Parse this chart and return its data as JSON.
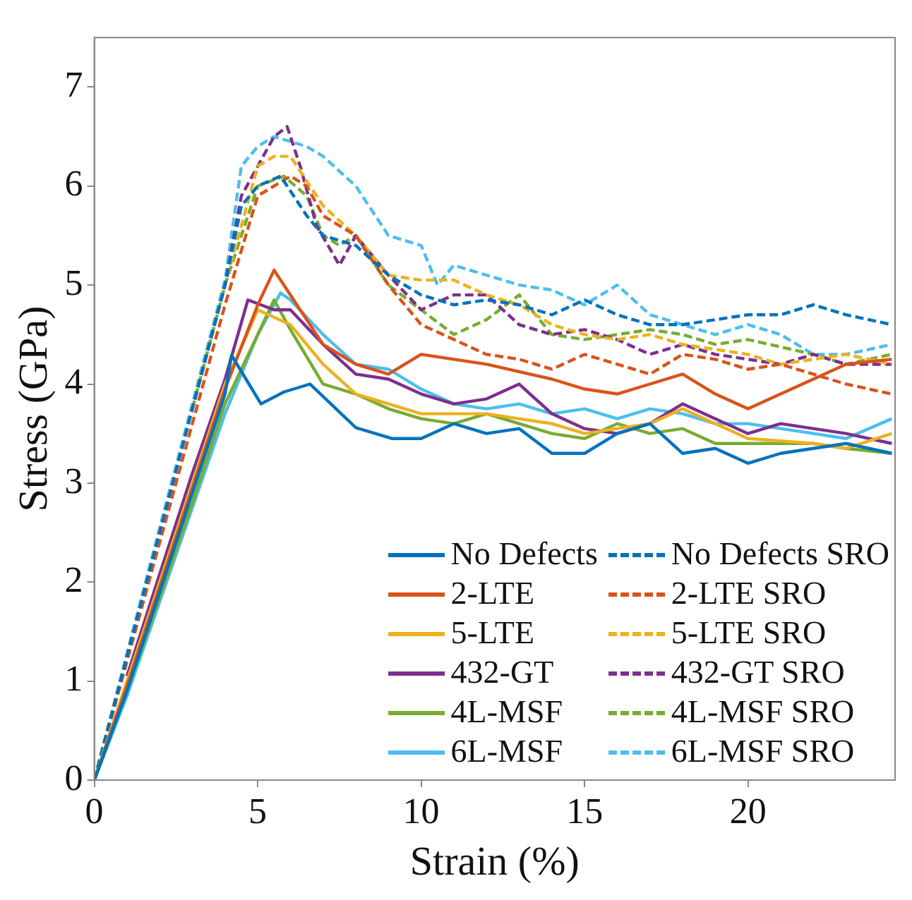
{
  "chart_data": {
    "type": "line",
    "xlabel": "Strain (%)",
    "ylabel": "Stress (GPa)",
    "xlim": [
      0,
      24.5
    ],
    "ylim": [
      0,
      7.5
    ],
    "xticks": [
      0,
      5,
      10,
      15,
      20
    ],
    "yticks": [
      0,
      1,
      2,
      3,
      4,
      5,
      6,
      7
    ],
    "grid": false,
    "legend": "bottom right",
    "marker": "none",
    "series": [
      {
        "name": "No Defects",
        "color": "#0072bd",
        "line_style": "solid",
        "x": [
          0,
          1,
          2,
          3,
          4,
          4.2,
          5.1,
          5.8,
          6.6,
          7.3,
          8,
          9.1,
          10,
          11,
          12,
          13,
          14,
          15,
          16,
          17,
          18,
          19,
          20,
          21,
          22,
          23,
          24.4
        ],
        "values": [
          0,
          0.9,
          1.9,
          2.9,
          3.9,
          4.29,
          3.8,
          3.92,
          4.0,
          3.78,
          3.56,
          3.45,
          3.45,
          3.6,
          3.5,
          3.55,
          3.3,
          3.3,
          3.5,
          3.6,
          3.3,
          3.35,
          3.2,
          3.3,
          3.35,
          3.4,
          3.3
        ]
      },
      {
        "name": "2-LTE",
        "color": "#d95319",
        "line_style": "solid",
        "x": [
          0,
          1,
          2,
          3,
          4,
          5,
          5.5,
          6,
          7,
          8,
          9,
          10,
          12,
          14,
          15,
          16,
          17,
          18,
          19,
          20,
          21,
          22,
          23,
          24.4
        ],
        "values": [
          0,
          0.95,
          1.95,
          2.95,
          3.95,
          4.8,
          5.15,
          4.9,
          4.4,
          4.2,
          4.1,
          4.3,
          4.2,
          4.05,
          3.95,
          3.9,
          4.0,
          4.1,
          3.9,
          3.75,
          3.9,
          4.05,
          4.2,
          4.25
        ]
      },
      {
        "name": "5-LTE",
        "color": "#edb120",
        "line_style": "solid",
        "x": [
          0,
          1,
          2,
          3,
          4,
          5,
          6,
          7,
          8,
          9,
          10,
          12,
          14,
          15,
          17,
          18,
          19,
          20,
          22,
          23,
          24.4
        ],
        "values": [
          0,
          1.0,
          2.0,
          3.0,
          4.0,
          4.75,
          4.6,
          4.2,
          3.9,
          3.8,
          3.7,
          3.7,
          3.6,
          3.5,
          3.6,
          3.75,
          3.6,
          3.45,
          3.4,
          3.35,
          3.5
        ]
      },
      {
        "name": "432-GT",
        "color": "#7e2f8e",
        "line_style": "solid",
        "x": [
          1,
          2,
          3,
          4,
          4.7,
          5.5,
          6,
          7,
          8,
          9,
          10,
          11,
          12,
          13,
          14,
          15,
          16,
          17,
          18,
          19,
          20,
          21,
          22,
          23,
          24.4
        ],
        "values": [
          1.05,
          2.08,
          3.1,
          4.05,
          4.85,
          4.75,
          4.75,
          4.4,
          4.1,
          4.05,
          3.9,
          3.8,
          3.85,
          4.0,
          3.7,
          3.55,
          3.5,
          3.6,
          3.8,
          3.65,
          3.5,
          3.6,
          3.55,
          3.5,
          3.4
        ]
      },
      {
        "name": "4L-MSF",
        "color": "#77ac30",
        "line_style": "solid",
        "x": [
          0,
          1,
          2,
          3,
          4,
          5.5,
          6,
          7,
          8,
          9,
          10,
          11,
          12,
          13,
          14,
          15,
          16,
          17,
          18,
          19,
          20,
          22,
          23,
          24.4
        ],
        "values": [
          0,
          0.9,
          1.85,
          2.8,
          3.8,
          4.85,
          4.55,
          4.0,
          3.9,
          3.75,
          3.65,
          3.6,
          3.7,
          3.6,
          3.5,
          3.45,
          3.6,
          3.5,
          3.55,
          3.4,
          3.4,
          3.4,
          3.35,
          3.3
        ]
      },
      {
        "name": "6L-MSF",
        "color": "#4dbeee",
        "line_style": "solid",
        "x": [
          0,
          1,
          2,
          3,
          4,
          5,
          5.7,
          6,
          7,
          8,
          9,
          10,
          11,
          12,
          13,
          14,
          15,
          16,
          17,
          18,
          19,
          20,
          21,
          22,
          23,
          24.4
        ],
        "values": [
          0,
          0.85,
          1.8,
          2.75,
          3.7,
          4.5,
          4.92,
          4.85,
          4.5,
          4.2,
          4.15,
          3.95,
          3.8,
          3.75,
          3.8,
          3.7,
          3.75,
          3.65,
          3.75,
          3.7,
          3.6,
          3.6,
          3.55,
          3.5,
          3.45,
          3.65
        ]
      },
      {
        "name": "No Defects SRO",
        "color": "#0072bd",
        "line_style": "dashed",
        "x": [
          0,
          1,
          2,
          3,
          4,
          4.5,
          5,
          5.7,
          6.5,
          7,
          8,
          9,
          10,
          11,
          12,
          13,
          14,
          15,
          16,
          17,
          18,
          19,
          20,
          21,
          22,
          23,
          24.4
        ],
        "values": [
          0,
          1.25,
          2.5,
          3.75,
          5.0,
          5.8,
          6.0,
          6.1,
          5.7,
          5.5,
          5.4,
          5.1,
          4.9,
          4.8,
          4.85,
          4.8,
          4.7,
          4.85,
          4.7,
          4.6,
          4.6,
          4.65,
          4.7,
          4.7,
          4.8,
          4.7,
          4.6
        ]
      },
      {
        "name": "2-LTE SRO",
        "color": "#d95319",
        "line_style": "dashed",
        "x": [
          0,
          1,
          2,
          3,
          4,
          5,
          6,
          6.5,
          7,
          8,
          9,
          10,
          11,
          12,
          13,
          14,
          15,
          16,
          17,
          18,
          19,
          20,
          21,
          22,
          23,
          24.4
        ],
        "values": [
          0,
          1.2,
          2.4,
          3.6,
          4.8,
          5.9,
          6.1,
          6.0,
          5.7,
          5.5,
          5.0,
          4.6,
          4.45,
          4.3,
          4.25,
          4.15,
          4.3,
          4.2,
          4.1,
          4.3,
          4.25,
          4.15,
          4.2,
          4.1,
          4.0,
          3.9
        ]
      },
      {
        "name": "5-LTE SRO",
        "color": "#edb120",
        "line_style": "dashed",
        "x": [
          0,
          1,
          2,
          3,
          4,
          5,
          5.5,
          6,
          7,
          8,
          9,
          10,
          11,
          12,
          13,
          14,
          15,
          16,
          17,
          18,
          19,
          20,
          21,
          22,
          23,
          24.4
        ],
        "values": [
          0,
          1.25,
          2.5,
          3.75,
          5.0,
          6.2,
          6.3,
          6.3,
          5.8,
          5.5,
          5.1,
          5.05,
          5.05,
          4.9,
          4.8,
          4.6,
          4.5,
          4.45,
          4.5,
          4.4,
          4.35,
          4.3,
          4.2,
          4.25,
          4.3,
          4.2
        ]
      },
      {
        "name": "432-GT SRO",
        "color": "#7e2f8e",
        "line_style": "dashed",
        "x": [
          0,
          1,
          2,
          3,
          4,
          4.5,
          5,
          5.5,
          5.9,
          6.3,
          6.8,
          7.5,
          8,
          9,
          10,
          11,
          12,
          13,
          14,
          15,
          16,
          17,
          18,
          19,
          20,
          21,
          22,
          23,
          24.4
        ],
        "values": [
          0,
          1.25,
          2.5,
          3.75,
          5.0,
          5.9,
          6.2,
          6.5,
          6.6,
          6.2,
          5.6,
          5.2,
          5.5,
          5.1,
          4.75,
          4.9,
          4.9,
          4.6,
          4.5,
          4.55,
          4.45,
          4.3,
          4.4,
          4.3,
          4.25,
          4.2,
          4.3,
          4.2,
          4.2
        ]
      },
      {
        "name": "4L-MSF SRO",
        "color": "#77ac30",
        "line_style": "dashed",
        "x": [
          3,
          4,
          5,
          5.8,
          6.5,
          7,
          7.5,
          8,
          9,
          10,
          11,
          12,
          13,
          14,
          15,
          16,
          17,
          18,
          19,
          20,
          22,
          23,
          24.4
        ],
        "values": [
          3.75,
          5.0,
          6.0,
          6.1,
          5.9,
          5.5,
          5.4,
          5.5,
          5.0,
          4.75,
          4.5,
          4.65,
          4.9,
          4.5,
          4.45,
          4.5,
          4.55,
          4.5,
          4.4,
          4.45,
          4.3,
          4.2,
          4.3
        ]
      },
      {
        "name": "6L-MSF SRO",
        "color": "#4dbeee",
        "line_style": "dashed",
        "x": [
          0,
          1,
          2,
          3,
          4,
          4.5,
          5,
          5.5,
          6.5,
          7,
          8,
          9,
          10,
          10.5,
          11,
          12,
          13,
          14,
          15,
          16,
          17,
          18,
          19,
          20,
          21,
          22,
          23,
          24.4
        ],
        "values": [
          0,
          1.28,
          2.55,
          3.8,
          5.05,
          6.2,
          6.4,
          6.5,
          6.4,
          6.3,
          6.0,
          5.5,
          5.4,
          5.0,
          5.2,
          5.1,
          5.0,
          4.95,
          4.8,
          5.0,
          4.7,
          4.6,
          4.5,
          4.6,
          4.5,
          4.3,
          4.3,
          4.4
        ]
      }
    ]
  }
}
